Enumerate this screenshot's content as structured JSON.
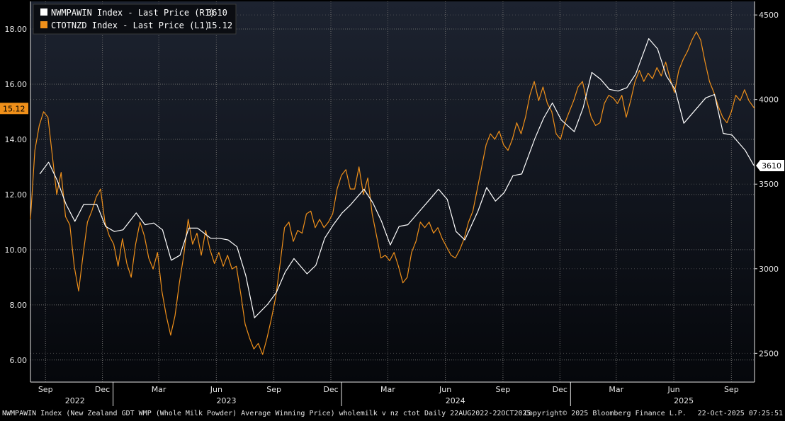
{
  "chart_data": {
    "type": "line",
    "legend": {
      "placement": "top-left",
      "entries": [
        {
          "text": "NWMPAWIN Index - Last Price (R1)",
          "last": "3610",
          "color": "#ffffff",
          "axis": "right"
        },
        {
          "text": "CTOTNZD Index - Last Price (L1)",
          "last": "15.12",
          "color": "#f0901a",
          "axis": "left"
        }
      ]
    },
    "left_axis": {
      "ylim": [
        5.2,
        19.0
      ],
      "ticks": [
        "6.00",
        "8.00",
        "10.00",
        "12.00",
        "14.00",
        "16.00",
        "18.00"
      ],
      "tick_values": [
        6,
        8,
        10,
        12,
        14,
        16,
        18
      ]
    },
    "right_axis": {
      "ylim": [
        2330,
        4580
      ],
      "ticks": [
        "2500",
        "3000",
        "3500",
        "4000",
        "4500"
      ],
      "tick_values": [
        2500,
        3000,
        3500,
        4000,
        4500
      ]
    },
    "x_axis": {
      "range": [
        "2022-08-22",
        "2025-10-22"
      ],
      "month_ticks": [
        {
          "label": "Sep",
          "date": "2022-09-15"
        },
        {
          "label": "Dec",
          "date": "2022-12-15"
        },
        {
          "label": "Mar",
          "date": "2023-03-15"
        },
        {
          "label": "Jun",
          "date": "2023-06-15"
        },
        {
          "label": "Sep",
          "date": "2023-09-15"
        },
        {
          "label": "Dec",
          "date": "2023-12-15"
        },
        {
          "label": "Mar",
          "date": "2024-03-15"
        },
        {
          "label": "Jun",
          "date": "2024-06-15"
        },
        {
          "label": "Sep",
          "date": "2024-09-15"
        },
        {
          "label": "Dec",
          "date": "2024-12-15"
        },
        {
          "label": "Mar",
          "date": "2025-03-15"
        },
        {
          "label": "Jun",
          "date": "2025-06-15"
        },
        {
          "label": "Sep",
          "date": "2025-09-15"
        }
      ],
      "year_labels": [
        {
          "label": "2022",
          "date": "2022-11-01"
        },
        {
          "label": "2023",
          "date": "2023-07-01"
        },
        {
          "label": "2024",
          "date": "2024-07-01"
        },
        {
          "label": "2025",
          "date": "2025-07-01"
        }
      ],
      "year_boundaries": [
        "2023-01-01",
        "2024-01-01",
        "2025-01-01"
      ]
    },
    "grid": true,
    "series": [
      {
        "name": "CTOTNZD Index - Last Price (L1)",
        "axis": "left",
        "color": "#f0901a",
        "points": [
          [
            "2022-08-22",
            11.1
          ],
          [
            "2022-08-29",
            13.6
          ],
          [
            "2022-09-05",
            14.5
          ],
          [
            "2022-09-12",
            15.0
          ],
          [
            "2022-09-19",
            14.8
          ],
          [
            "2022-09-26",
            13.4
          ],
          [
            "2022-10-03",
            12.0
          ],
          [
            "2022-10-10",
            12.8
          ],
          [
            "2022-10-17",
            11.2
          ],
          [
            "2022-10-24",
            10.9
          ],
          [
            "2022-10-31",
            9.4
          ],
          [
            "2022-11-07",
            8.5
          ],
          [
            "2022-11-14",
            9.8
          ],
          [
            "2022-11-21",
            11.0
          ],
          [
            "2022-11-28",
            11.4
          ],
          [
            "2022-12-05",
            11.9
          ],
          [
            "2022-12-12",
            12.2
          ],
          [
            "2022-12-19",
            11.0
          ],
          [
            "2022-12-26",
            10.5
          ],
          [
            "2023-01-02",
            10.2
          ],
          [
            "2023-01-09",
            9.4
          ],
          [
            "2023-01-16",
            10.4
          ],
          [
            "2023-01-23",
            9.5
          ],
          [
            "2023-01-30",
            9.0
          ],
          [
            "2023-02-06",
            10.2
          ],
          [
            "2023-02-13",
            11.0
          ],
          [
            "2023-02-20",
            10.5
          ],
          [
            "2023-02-27",
            9.7
          ],
          [
            "2023-03-06",
            9.3
          ],
          [
            "2023-03-13",
            9.9
          ],
          [
            "2023-03-20",
            8.5
          ],
          [
            "2023-03-27",
            7.6
          ],
          [
            "2023-04-03",
            6.9
          ],
          [
            "2023-04-10",
            7.6
          ],
          [
            "2023-04-17",
            8.8
          ],
          [
            "2023-04-24",
            9.8
          ],
          [
            "2023-05-01",
            11.1
          ],
          [
            "2023-05-08",
            10.2
          ],
          [
            "2023-05-15",
            10.6
          ],
          [
            "2023-05-22",
            9.8
          ],
          [
            "2023-05-29",
            10.7
          ],
          [
            "2023-06-05",
            10.0
          ],
          [
            "2023-06-12",
            9.5
          ],
          [
            "2023-06-19",
            9.9
          ],
          [
            "2023-06-26",
            9.4
          ],
          [
            "2023-07-03",
            9.8
          ],
          [
            "2023-07-10",
            9.3
          ],
          [
            "2023-07-17",
            9.4
          ],
          [
            "2023-07-24",
            8.4
          ],
          [
            "2023-07-31",
            7.3
          ],
          [
            "2023-08-07",
            6.8
          ],
          [
            "2023-08-14",
            6.4
          ],
          [
            "2023-08-21",
            6.6
          ],
          [
            "2023-08-28",
            6.2
          ],
          [
            "2023-09-04",
            6.8
          ],
          [
            "2023-09-11",
            7.5
          ],
          [
            "2023-09-18",
            8.3
          ],
          [
            "2023-09-25",
            9.5
          ],
          [
            "2023-10-02",
            10.8
          ],
          [
            "2023-10-09",
            11.0
          ],
          [
            "2023-10-16",
            10.3
          ],
          [
            "2023-10-23",
            10.7
          ],
          [
            "2023-10-30",
            10.6
          ],
          [
            "2023-11-06",
            11.3
          ],
          [
            "2023-11-13",
            11.4
          ],
          [
            "2023-11-20",
            10.8
          ],
          [
            "2023-11-27",
            11.1
          ],
          [
            "2023-12-04",
            10.8
          ],
          [
            "2023-12-11",
            11.0
          ],
          [
            "2023-12-18",
            11.3
          ],
          [
            "2023-12-25",
            12.2
          ],
          [
            "2024-01-01",
            12.7
          ],
          [
            "2024-01-08",
            12.9
          ],
          [
            "2024-01-15",
            12.2
          ],
          [
            "2024-01-22",
            12.2
          ],
          [
            "2024-01-29",
            13.0
          ],
          [
            "2024-02-05",
            12.0
          ],
          [
            "2024-02-12",
            12.6
          ],
          [
            "2024-02-19",
            11.3
          ],
          [
            "2024-02-26",
            10.5
          ],
          [
            "2024-03-04",
            9.7
          ],
          [
            "2024-03-11",
            9.8
          ],
          [
            "2024-03-18",
            9.6
          ],
          [
            "2024-03-25",
            9.9
          ],
          [
            "2024-04-01",
            9.4
          ],
          [
            "2024-04-08",
            8.8
          ],
          [
            "2024-04-15",
            9.0
          ],
          [
            "2024-04-22",
            9.9
          ],
          [
            "2024-04-29",
            10.3
          ],
          [
            "2024-05-06",
            11.0
          ],
          [
            "2024-05-13",
            10.8
          ],
          [
            "2024-05-20",
            11.0
          ],
          [
            "2024-05-27",
            10.6
          ],
          [
            "2024-06-03",
            10.8
          ],
          [
            "2024-06-10",
            10.4
          ],
          [
            "2024-06-17",
            10.1
          ],
          [
            "2024-06-24",
            9.8
          ],
          [
            "2024-07-01",
            9.7
          ],
          [
            "2024-07-08",
            10.0
          ],
          [
            "2024-07-15",
            10.4
          ],
          [
            "2024-07-22",
            11.0
          ],
          [
            "2024-07-29",
            11.4
          ],
          [
            "2024-08-05",
            12.2
          ],
          [
            "2024-08-12",
            13.0
          ],
          [
            "2024-08-19",
            13.8
          ],
          [
            "2024-08-26",
            14.2
          ],
          [
            "2024-09-02",
            14.0
          ],
          [
            "2024-09-09",
            14.3
          ],
          [
            "2024-09-16",
            13.8
          ],
          [
            "2024-09-23",
            13.6
          ],
          [
            "2024-09-30",
            14.0
          ],
          [
            "2024-10-07",
            14.6
          ],
          [
            "2024-10-14",
            14.2
          ],
          [
            "2024-10-21",
            14.8
          ],
          [
            "2024-10-28",
            15.6
          ],
          [
            "2024-11-04",
            16.1
          ],
          [
            "2024-11-11",
            15.4
          ],
          [
            "2024-11-18",
            15.9
          ],
          [
            "2024-11-25",
            15.3
          ],
          [
            "2024-12-02",
            15.0
          ],
          [
            "2024-12-09",
            14.2
          ],
          [
            "2024-12-16",
            14.0
          ],
          [
            "2024-12-23",
            14.6
          ],
          [
            "2024-12-30",
            15.0
          ],
          [
            "2025-01-06",
            15.4
          ],
          [
            "2025-01-13",
            15.9
          ],
          [
            "2025-01-20",
            16.1
          ],
          [
            "2025-01-27",
            15.4
          ],
          [
            "2025-02-03",
            14.8
          ],
          [
            "2025-02-10",
            14.5
          ],
          [
            "2025-02-17",
            14.6
          ],
          [
            "2025-02-24",
            15.3
          ],
          [
            "2025-03-03",
            15.6
          ],
          [
            "2025-03-10",
            15.5
          ],
          [
            "2025-03-17",
            15.3
          ],
          [
            "2025-03-24",
            15.6
          ],
          [
            "2025-03-31",
            14.8
          ],
          [
            "2025-04-07",
            15.4
          ],
          [
            "2025-04-14",
            16.1
          ],
          [
            "2025-04-21",
            16.5
          ],
          [
            "2025-04-28",
            16.1
          ],
          [
            "2025-05-05",
            16.4
          ],
          [
            "2025-05-12",
            16.2
          ],
          [
            "2025-05-19",
            16.6
          ],
          [
            "2025-05-26",
            16.3
          ],
          [
            "2025-06-02",
            16.8
          ],
          [
            "2025-06-09",
            16.2
          ],
          [
            "2025-06-16",
            15.7
          ],
          [
            "2025-06-23",
            16.5
          ],
          [
            "2025-06-30",
            16.9
          ],
          [
            "2025-07-07",
            17.2
          ],
          [
            "2025-07-14",
            17.6
          ],
          [
            "2025-07-21",
            17.9
          ],
          [
            "2025-07-28",
            17.6
          ],
          [
            "2025-08-04",
            16.8
          ],
          [
            "2025-08-11",
            16.1
          ],
          [
            "2025-08-18",
            15.7
          ],
          [
            "2025-08-25",
            15.2
          ],
          [
            "2025-09-01",
            14.8
          ],
          [
            "2025-09-08",
            14.6
          ],
          [
            "2025-09-15",
            15.0
          ],
          [
            "2025-09-22",
            15.6
          ],
          [
            "2025-09-29",
            15.4
          ],
          [
            "2025-10-06",
            15.8
          ],
          [
            "2025-10-13",
            15.4
          ],
          [
            "2025-10-22",
            15.12
          ]
        ]
      },
      {
        "name": "NWMPAWIN Index - Last Price (R1)",
        "axis": "right",
        "color": "#ffffff",
        "points": [
          [
            "2022-09-06",
            3560
          ],
          [
            "2022-09-20",
            3630
          ],
          [
            "2022-10-04",
            3520
          ],
          [
            "2022-10-18",
            3380
          ],
          [
            "2022-11-01",
            3280
          ],
          [
            "2022-11-15",
            3380
          ],
          [
            "2022-12-06",
            3380
          ],
          [
            "2022-12-20",
            3250
          ],
          [
            "2023-01-03",
            3220
          ],
          [
            "2023-01-17",
            3230
          ],
          [
            "2023-02-07",
            3330
          ],
          [
            "2023-02-21",
            3260
          ],
          [
            "2023-03-07",
            3270
          ],
          [
            "2023-03-21",
            3230
          ],
          [
            "2023-04-04",
            3050
          ],
          [
            "2023-04-18",
            3080
          ],
          [
            "2023-05-02",
            3240
          ],
          [
            "2023-05-16",
            3240
          ],
          [
            "2023-06-06",
            3180
          ],
          [
            "2023-06-20",
            3180
          ],
          [
            "2023-07-04",
            3170
          ],
          [
            "2023-07-18",
            3130
          ],
          [
            "2023-08-01",
            2960
          ],
          [
            "2023-08-15",
            2710
          ],
          [
            "2023-09-05",
            2790
          ],
          [
            "2023-09-19",
            2860
          ],
          [
            "2023-10-03",
            2980
          ],
          [
            "2023-10-17",
            3060
          ],
          [
            "2023-11-07",
            2970
          ],
          [
            "2023-11-21",
            3020
          ],
          [
            "2023-12-05",
            3180
          ],
          [
            "2023-12-19",
            3260
          ],
          [
            "2024-01-02",
            3330
          ],
          [
            "2024-01-16",
            3380
          ],
          [
            "2024-02-06",
            3470
          ],
          [
            "2024-02-20",
            3390
          ],
          [
            "2024-03-05",
            3280
          ],
          [
            "2024-03-19",
            3140
          ],
          [
            "2024-04-02",
            3250
          ],
          [
            "2024-04-16",
            3260
          ],
          [
            "2024-05-07",
            3350
          ],
          [
            "2024-05-21",
            3410
          ],
          [
            "2024-06-04",
            3470
          ],
          [
            "2024-06-18",
            3410
          ],
          [
            "2024-07-02",
            3220
          ],
          [
            "2024-07-16",
            3170
          ],
          [
            "2024-08-06",
            3340
          ],
          [
            "2024-08-20",
            3480
          ],
          [
            "2024-09-03",
            3400
          ],
          [
            "2024-09-17",
            3450
          ],
          [
            "2024-10-01",
            3550
          ],
          [
            "2024-10-15",
            3560
          ],
          [
            "2024-11-05",
            3770
          ],
          [
            "2024-11-19",
            3890
          ],
          [
            "2024-12-03",
            3980
          ],
          [
            "2024-12-17",
            3880
          ],
          [
            "2025-01-07",
            3810
          ],
          [
            "2025-01-21",
            3950
          ],
          [
            "2025-02-04",
            4160
          ],
          [
            "2025-02-18",
            4120
          ],
          [
            "2025-03-04",
            4060
          ],
          [
            "2025-03-18",
            4050
          ],
          [
            "2025-04-01",
            4070
          ],
          [
            "2025-04-15",
            4150
          ],
          [
            "2025-05-06",
            4360
          ],
          [
            "2025-05-20",
            4300
          ],
          [
            "2025-06-03",
            4140
          ],
          [
            "2025-06-17",
            4060
          ],
          [
            "2025-07-01",
            3860
          ],
          [
            "2025-07-15",
            3920
          ],
          [
            "2025-08-05",
            4010
          ],
          [
            "2025-08-19",
            4030
          ],
          [
            "2025-09-02",
            3800
          ],
          [
            "2025-09-16",
            3790
          ],
          [
            "2025-10-07",
            3700
          ],
          [
            "2025-10-21",
            3610
          ]
        ]
      }
    ],
    "last_value_tags": {
      "left": "15.12",
      "right": "3610"
    }
  },
  "footer": {
    "description": "NWMPAWIN Index (New Zealand GDT WMP (Whole Milk Powder) Average Winning Price) wholemilk v nz ctot Daily 22AUG2022-22OCT2025",
    "copyright": "Copyright© 2025 Bloomberg Finance L.P.",
    "timestamp": "22-Oct-2025 07:25:51"
  },
  "colors": {
    "background": "#000000",
    "plot_top": "#1d2330",
    "plot_bottom": "#05070b",
    "axis_text": "#e6e6e6",
    "grid": "#6a6a6a",
    "orange": "#f0901a",
    "white": "#ffffff"
  }
}
